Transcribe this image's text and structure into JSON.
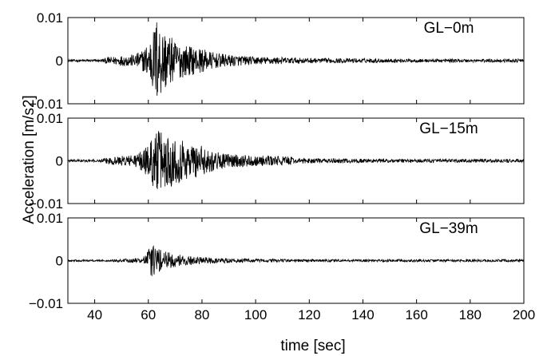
{
  "chart_data": {
    "type": "line",
    "xlabel": "time [sec]",
    "ylabel": "Acceleration [m/s2]",
    "xlim": [
      30,
      200
    ],
    "x_ticks": [
      40,
      60,
      80,
      100,
      120,
      140,
      160,
      180,
      200
    ],
    "x_tick_labels": [
      "40",
      "60",
      "80",
      "100",
      "120",
      "140",
      "160",
      "180",
      "200"
    ],
    "y_ticks": [
      -0.01,
      0,
      0.01
    ],
    "y_tick_labels": [
      "-0.01",
      "0",
      "0.01"
    ],
    "grid": false,
    "line_color": "#000000",
    "panels": [
      {
        "label": "GL-0m",
        "ylim": [
          -0.01,
          0.01
        ],
        "envelope": [
          {
            "t": 30,
            "a": 0.0003
          },
          {
            "t": 42,
            "a": 0.0003
          },
          {
            "t": 45,
            "a": 0.0008
          },
          {
            "t": 50,
            "a": 0.0012
          },
          {
            "t": 55,
            "a": 0.0015
          },
          {
            "t": 58,
            "a": 0.0025
          },
          {
            "t": 60,
            "a": 0.0045
          },
          {
            "t": 62,
            "a": 0.0075
          },
          {
            "t": 63,
            "a": 0.0105
          },
          {
            "t": 65,
            "a": 0.008
          },
          {
            "t": 70,
            "a": 0.0045
          },
          {
            "t": 75,
            "a": 0.0035
          },
          {
            "t": 80,
            "a": 0.0028
          },
          {
            "t": 85,
            "a": 0.0018
          },
          {
            "t": 90,
            "a": 0.0014
          },
          {
            "t": 100,
            "a": 0.0009
          },
          {
            "t": 110,
            "a": 0.0008
          },
          {
            "t": 120,
            "a": 0.0006
          },
          {
            "t": 140,
            "a": 0.0005
          },
          {
            "t": 160,
            "a": 0.0004
          },
          {
            "t": 200,
            "a": 0.0004
          }
        ]
      },
      {
        "label": "GL-15m",
        "ylim": [
          -0.01,
          0.01
        ],
        "envelope": [
          {
            "t": 30,
            "a": 0.0003
          },
          {
            "t": 42,
            "a": 0.0003
          },
          {
            "t": 45,
            "a": 0.0008
          },
          {
            "t": 50,
            "a": 0.0012
          },
          {
            "t": 55,
            "a": 0.0015
          },
          {
            "t": 58,
            "a": 0.0025
          },
          {
            "t": 60,
            "a": 0.004
          },
          {
            "t": 62,
            "a": 0.0065
          },
          {
            "t": 65,
            "a": 0.0075
          },
          {
            "t": 70,
            "a": 0.0055
          },
          {
            "t": 75,
            "a": 0.0045
          },
          {
            "t": 80,
            "a": 0.0035
          },
          {
            "t": 85,
            "a": 0.0022
          },
          {
            "t": 90,
            "a": 0.0016
          },
          {
            "t": 100,
            "a": 0.0012
          },
          {
            "t": 112,
            "a": 0.0011
          },
          {
            "t": 115,
            "a": 0.0006
          },
          {
            "t": 140,
            "a": 0.0005
          },
          {
            "t": 160,
            "a": 0.0004
          },
          {
            "t": 200,
            "a": 0.0004
          }
        ]
      },
      {
        "label": "GL-39m",
        "ylim": [
          -0.01,
          0.01
        ],
        "envelope": [
          {
            "t": 30,
            "a": 0.0002
          },
          {
            "t": 45,
            "a": 0.0002
          },
          {
            "t": 50,
            "a": 0.0004
          },
          {
            "t": 58,
            "a": 0.0006
          },
          {
            "t": 60,
            "a": 0.003
          },
          {
            "t": 61,
            "a": 0.004
          },
          {
            "t": 63,
            "a": 0.003
          },
          {
            "t": 65,
            "a": 0.0025
          },
          {
            "t": 70,
            "a": 0.0015
          },
          {
            "t": 75,
            "a": 0.0011
          },
          {
            "t": 80,
            "a": 0.0008
          },
          {
            "t": 90,
            "a": 0.0006
          },
          {
            "t": 100,
            "a": 0.0004
          },
          {
            "t": 120,
            "a": 0.0003
          },
          {
            "t": 160,
            "a": 0.0003
          },
          {
            "t": 200,
            "a": 0.0003
          }
        ]
      }
    ]
  }
}
